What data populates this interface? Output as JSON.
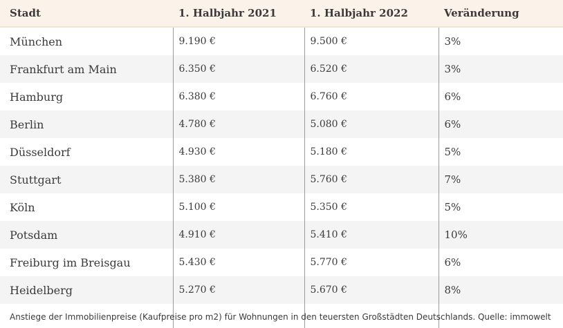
{
  "table": {
    "headers": [
      "Stadt",
      "1. Halbjahr 2021",
      "1. Halbjahr 2022",
      "Veränderung"
    ],
    "rows": [
      [
        "München",
        "9.190 €",
        "9.500 €",
        "3%"
      ],
      [
        "Frankfurt am Main",
        "6.350 €",
        "6.520 €",
        "3%"
      ],
      [
        "Hamburg",
        "6.380 €",
        "6.760 €",
        "6%"
      ],
      [
        "Berlin",
        "4.780 €",
        "5.080 €",
        "6%"
      ],
      [
        "Düsseldorf",
        "4.930 €",
        "5.180 €",
        "5%"
      ],
      [
        "Stuttgart",
        "5.380 €",
        "5.760 €",
        "7%"
      ],
      [
        "Köln",
        "5.100 €",
        "5.350 €",
        "5%"
      ],
      [
        "Potsdam",
        "4.910 €",
        "5.410 €",
        "10%"
      ],
      [
        "Freiburg im Breisgau",
        "5.430 €",
        "5.770 €",
        "6%"
      ],
      [
        "Heidelberg",
        "5.270 €",
        "5.670 €",
        "8%"
      ]
    ]
  },
  "caption": "Anstiege der Immobilienpreise (Kaufpreise pro m2) für Wohnungen in den teuersten Großstädten Deutschlands. Quelle: immowelt"
}
